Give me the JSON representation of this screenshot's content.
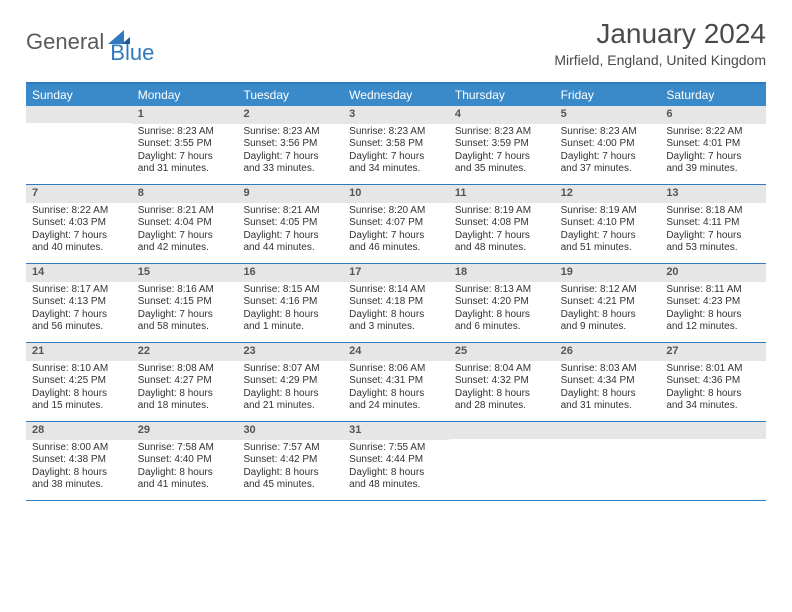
{
  "brand": {
    "general": "General",
    "blue": "Blue"
  },
  "title": "January 2024",
  "location": "Mirfield, England, United Kingdom",
  "colors": {
    "accent": "#2f7ac0",
    "header_bg": "#3a8ac9",
    "header_text": "#ffffff",
    "daynum_bg": "#e6e6e6",
    "daynum_text": "#555555",
    "body_text": "#333333",
    "logo_gray": "#5a5a5a"
  },
  "day_headers": [
    "Sunday",
    "Monday",
    "Tuesday",
    "Wednesday",
    "Thursday",
    "Friday",
    "Saturday"
  ],
  "weeks": [
    [
      {
        "n": "",
        "sunrise": "",
        "sunset": "",
        "daylight": ""
      },
      {
        "n": "1",
        "sunrise": "Sunrise: 8:23 AM",
        "sunset": "Sunset: 3:55 PM",
        "daylight": "Daylight: 7 hours and 31 minutes."
      },
      {
        "n": "2",
        "sunrise": "Sunrise: 8:23 AM",
        "sunset": "Sunset: 3:56 PM",
        "daylight": "Daylight: 7 hours and 33 minutes."
      },
      {
        "n": "3",
        "sunrise": "Sunrise: 8:23 AM",
        "sunset": "Sunset: 3:58 PM",
        "daylight": "Daylight: 7 hours and 34 minutes."
      },
      {
        "n": "4",
        "sunrise": "Sunrise: 8:23 AM",
        "sunset": "Sunset: 3:59 PM",
        "daylight": "Daylight: 7 hours and 35 minutes."
      },
      {
        "n": "5",
        "sunrise": "Sunrise: 8:23 AM",
        "sunset": "Sunset: 4:00 PM",
        "daylight": "Daylight: 7 hours and 37 minutes."
      },
      {
        "n": "6",
        "sunrise": "Sunrise: 8:22 AM",
        "sunset": "Sunset: 4:01 PM",
        "daylight": "Daylight: 7 hours and 39 minutes."
      }
    ],
    [
      {
        "n": "7",
        "sunrise": "Sunrise: 8:22 AM",
        "sunset": "Sunset: 4:03 PM",
        "daylight": "Daylight: 7 hours and 40 minutes."
      },
      {
        "n": "8",
        "sunrise": "Sunrise: 8:21 AM",
        "sunset": "Sunset: 4:04 PM",
        "daylight": "Daylight: 7 hours and 42 minutes."
      },
      {
        "n": "9",
        "sunrise": "Sunrise: 8:21 AM",
        "sunset": "Sunset: 4:05 PM",
        "daylight": "Daylight: 7 hours and 44 minutes."
      },
      {
        "n": "10",
        "sunrise": "Sunrise: 8:20 AM",
        "sunset": "Sunset: 4:07 PM",
        "daylight": "Daylight: 7 hours and 46 minutes."
      },
      {
        "n": "11",
        "sunrise": "Sunrise: 8:19 AM",
        "sunset": "Sunset: 4:08 PM",
        "daylight": "Daylight: 7 hours and 48 minutes."
      },
      {
        "n": "12",
        "sunrise": "Sunrise: 8:19 AM",
        "sunset": "Sunset: 4:10 PM",
        "daylight": "Daylight: 7 hours and 51 minutes."
      },
      {
        "n": "13",
        "sunrise": "Sunrise: 8:18 AM",
        "sunset": "Sunset: 4:11 PM",
        "daylight": "Daylight: 7 hours and 53 minutes."
      }
    ],
    [
      {
        "n": "14",
        "sunrise": "Sunrise: 8:17 AM",
        "sunset": "Sunset: 4:13 PM",
        "daylight": "Daylight: 7 hours and 56 minutes."
      },
      {
        "n": "15",
        "sunrise": "Sunrise: 8:16 AM",
        "sunset": "Sunset: 4:15 PM",
        "daylight": "Daylight: 7 hours and 58 minutes."
      },
      {
        "n": "16",
        "sunrise": "Sunrise: 8:15 AM",
        "sunset": "Sunset: 4:16 PM",
        "daylight": "Daylight: 8 hours and 1 minute."
      },
      {
        "n": "17",
        "sunrise": "Sunrise: 8:14 AM",
        "sunset": "Sunset: 4:18 PM",
        "daylight": "Daylight: 8 hours and 3 minutes."
      },
      {
        "n": "18",
        "sunrise": "Sunrise: 8:13 AM",
        "sunset": "Sunset: 4:20 PM",
        "daylight": "Daylight: 8 hours and 6 minutes."
      },
      {
        "n": "19",
        "sunrise": "Sunrise: 8:12 AM",
        "sunset": "Sunset: 4:21 PM",
        "daylight": "Daylight: 8 hours and 9 minutes."
      },
      {
        "n": "20",
        "sunrise": "Sunrise: 8:11 AM",
        "sunset": "Sunset: 4:23 PM",
        "daylight": "Daylight: 8 hours and 12 minutes."
      }
    ],
    [
      {
        "n": "21",
        "sunrise": "Sunrise: 8:10 AM",
        "sunset": "Sunset: 4:25 PM",
        "daylight": "Daylight: 8 hours and 15 minutes."
      },
      {
        "n": "22",
        "sunrise": "Sunrise: 8:08 AM",
        "sunset": "Sunset: 4:27 PM",
        "daylight": "Daylight: 8 hours and 18 minutes."
      },
      {
        "n": "23",
        "sunrise": "Sunrise: 8:07 AM",
        "sunset": "Sunset: 4:29 PM",
        "daylight": "Daylight: 8 hours and 21 minutes."
      },
      {
        "n": "24",
        "sunrise": "Sunrise: 8:06 AM",
        "sunset": "Sunset: 4:31 PM",
        "daylight": "Daylight: 8 hours and 24 minutes."
      },
      {
        "n": "25",
        "sunrise": "Sunrise: 8:04 AM",
        "sunset": "Sunset: 4:32 PM",
        "daylight": "Daylight: 8 hours and 28 minutes."
      },
      {
        "n": "26",
        "sunrise": "Sunrise: 8:03 AM",
        "sunset": "Sunset: 4:34 PM",
        "daylight": "Daylight: 8 hours and 31 minutes."
      },
      {
        "n": "27",
        "sunrise": "Sunrise: 8:01 AM",
        "sunset": "Sunset: 4:36 PM",
        "daylight": "Daylight: 8 hours and 34 minutes."
      }
    ],
    [
      {
        "n": "28",
        "sunrise": "Sunrise: 8:00 AM",
        "sunset": "Sunset: 4:38 PM",
        "daylight": "Daylight: 8 hours and 38 minutes."
      },
      {
        "n": "29",
        "sunrise": "Sunrise: 7:58 AM",
        "sunset": "Sunset: 4:40 PM",
        "daylight": "Daylight: 8 hours and 41 minutes."
      },
      {
        "n": "30",
        "sunrise": "Sunrise: 7:57 AM",
        "sunset": "Sunset: 4:42 PM",
        "daylight": "Daylight: 8 hours and 45 minutes."
      },
      {
        "n": "31",
        "sunrise": "Sunrise: 7:55 AM",
        "sunset": "Sunset: 4:44 PM",
        "daylight": "Daylight: 8 hours and 48 minutes."
      },
      {
        "n": "",
        "sunrise": "",
        "sunset": "",
        "daylight": ""
      },
      {
        "n": "",
        "sunrise": "",
        "sunset": "",
        "daylight": ""
      },
      {
        "n": "",
        "sunrise": "",
        "sunset": "",
        "daylight": ""
      }
    ]
  ]
}
